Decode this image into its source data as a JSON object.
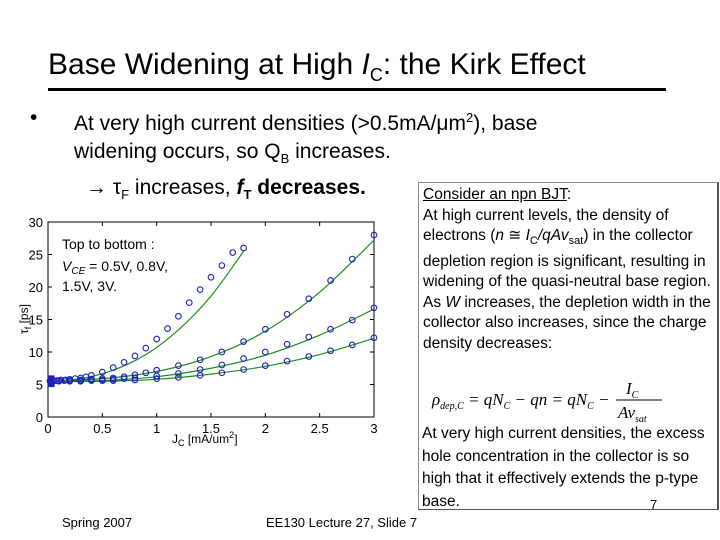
{
  "slide": {
    "title_main": "Base Widening at High ",
    "title_ic_i": "I",
    "title_ic_sub": "C",
    "title_rest": ": the Kirk Effect",
    "bullet_symbol": "•",
    "bullet_line1_pre": "At very high current densities (>0.5mA/",
    "bullet_mu": "μ",
    "bullet_line1_m": "m",
    "bullet_sup": "2",
    "bullet_line1_post": "), base",
    "bullet_line2_pre": "widening occurs, so Q",
    "bullet_line2_sub": "B",
    "bullet_line2_post": " increases.",
    "arrow_symbol": "→",
    "arrow_tau": "τ",
    "arrow_sub_F": "F",
    "arrow_mid": " increases, ",
    "arrow_f": "f",
    "arrow_sub_T": "T",
    "arrow_end": " decreases."
  },
  "callout": {
    "heading": "Consider an npn BJT",
    "heading_colon": ":",
    "para1_a": "At high current levels, the density of electrons (",
    "para1_n": "n",
    "para1_approx": " ≅ ",
    "para1_I": "I",
    "para1_C": "C",
    "para1_q": "/qAv",
    "para1_sat": "sat",
    "para1_b": ") in the collector depletion region is significant, resulting in widening of the quasi-neutral base region.",
    "para2_a": "As ",
    "para2_W": "W",
    "para2_b": " increases, the depletion width in the collector also increases, since the charge density decreases:",
    "para3": "At very high current densities, the excess hole concentration in the collector is so high that it effectively extends the p-type base."
  },
  "formula": {
    "rho": "ρ",
    "sub_depC": "dep,C",
    "eq1": " = qN",
    "sub_C1": "C",
    "eq2": " − qn = qN",
    "sub_C2": "C",
    "minus": " − ",
    "num_I": "I",
    "num_C": "C",
    "den": "Av",
    "den_sub": "sat"
  },
  "footer": {
    "left": "Spring 2007",
    "center": "EE130 Lecture 27, Slide 7",
    "page": "7"
  },
  "chart_data": {
    "type": "scatter",
    "title": "",
    "xlabel": "J",
    "xlabel_sub": "C",
    "xlabel_unit": " [mA/um",
    "xlabel_sup": "2",
    "xlabel_close": "]",
    "ylabel_tau": "τ",
    "ylabel_sub": "f",
    "ylabel_unit": " [ps]",
    "xlim": [
      0,
      3
    ],
    "ylim": [
      0,
      30
    ],
    "x_ticks": [
      0,
      0.5,
      1,
      1.5,
      2,
      2.5,
      3
    ],
    "x_tick_labels": [
      "0",
      "0.5",
      "1",
      "1.5",
      "2",
      "2.5",
      "3"
    ],
    "y_ticks": [
      0,
      5,
      10,
      15,
      20,
      25,
      30
    ],
    "y_tick_labels": [
      "0",
      "5",
      "10",
      "15",
      "20",
      "25",
      "30"
    ],
    "annotation_line1": "Top to bottom :",
    "annotation_line2": "V",
    "annotation_line2_sub": "CE",
    "annotation_line2_rest": " = 0.5V, 0.8V,",
    "annotation_line3": "1.5V, 3V.",
    "marker_color": "#1f1fbf",
    "fit_color": "#1a8f1a",
    "series": [
      {
        "x": [
          0.02,
          0.05,
          0.08,
          0.12,
          0.16,
          0.2,
          0.25,
          0.3,
          0.35,
          0.4,
          0.5,
          0.6,
          0.7,
          0.8,
          0.9,
          1.0,
          1.1,
          1.2,
          1.3,
          1.4,
          1.5,
          1.6,
          1.7,
          1.8
        ],
        "values": [
          5.6,
          5.6,
          5.6,
          5.7,
          5.7,
          5.8,
          5.9,
          6.0,
          6.2,
          6.4,
          6.9,
          7.6,
          8.4,
          9.4,
          10.6,
          12.0,
          13.6,
          15.5,
          17.6,
          19.6,
          21.5,
          23.3,
          25.3,
          26.0
        ],
        "fit": [
          [
            0,
            5.5
          ],
          [
            0.3,
            5.9
          ],
          [
            0.6,
            7.2
          ],
          [
            0.9,
            9.6
          ],
          [
            1.2,
            13.4
          ],
          [
            1.5,
            18.6
          ],
          [
            1.8,
            25.5
          ]
        ]
      },
      {
        "x": [
          0.02,
          0.05,
          0.1,
          0.15,
          0.2,
          0.3,
          0.4,
          0.5,
          0.6,
          0.7,
          0.8,
          0.9,
          1.0,
          1.2,
          1.4,
          1.6,
          1.8,
          2.0,
          2.2,
          2.4,
          2.6,
          2.8,
          3.0
        ],
        "values": [
          5.6,
          5.6,
          5.6,
          5.6,
          5.6,
          5.7,
          5.8,
          5.9,
          6.0,
          6.2,
          6.5,
          6.8,
          7.2,
          7.9,
          8.8,
          10.0,
          11.6,
          13.5,
          15.8,
          18.2,
          21.0,
          24.3,
          28.0
        ],
        "fit": [
          [
            0,
            5.5
          ],
          [
            0.5,
            5.9
          ],
          [
            1.0,
            7.0
          ],
          [
            1.5,
            9.3
          ],
          [
            2.0,
            13.2
          ],
          [
            2.5,
            19.2
          ],
          [
            3.0,
            27.2
          ]
        ]
      },
      {
        "x": [
          0.02,
          0.05,
          0.1,
          0.2,
          0.3,
          0.4,
          0.5,
          0.6,
          0.7,
          0.8,
          1.0,
          1.2,
          1.4,
          1.6,
          1.8,
          2.0,
          2.2,
          2.4,
          2.6,
          2.8,
          3.0
        ],
        "values": [
          5.5,
          5.5,
          5.6,
          5.6,
          5.6,
          5.7,
          5.7,
          5.8,
          5.9,
          6.0,
          6.3,
          6.7,
          7.3,
          8.0,
          9.0,
          10.0,
          11.2,
          12.3,
          13.5,
          14.9,
          16.8
        ],
        "fit": [
          [
            0,
            5.5
          ],
          [
            0.5,
            5.6
          ],
          [
            1.0,
            6.2
          ],
          [
            1.5,
            7.5
          ],
          [
            2.0,
            9.5
          ],
          [
            2.5,
            12.6
          ],
          [
            3.0,
            16.6
          ]
        ]
      },
      {
        "x": [
          0.02,
          0.05,
          0.1,
          0.2,
          0.3,
          0.4,
          0.5,
          0.6,
          0.8,
          1.0,
          1.2,
          1.4,
          1.6,
          1.8,
          2.0,
          2.2,
          2.4,
          2.6,
          2.8,
          3.0
        ],
        "values": [
          5.5,
          5.5,
          5.5,
          5.5,
          5.5,
          5.6,
          5.6,
          5.6,
          5.7,
          5.9,
          6.1,
          6.4,
          6.8,
          7.3,
          7.9,
          8.6,
          9.3,
          10.2,
          11.1,
          12.2
        ],
        "fit": [
          [
            0,
            5.5
          ],
          [
            0.5,
            5.5
          ],
          [
            1.0,
            5.8
          ],
          [
            1.5,
            6.6
          ],
          [
            2.0,
            7.8
          ],
          [
            2.5,
            9.6
          ],
          [
            3.0,
            12.1
          ]
        ]
      }
    ]
  }
}
